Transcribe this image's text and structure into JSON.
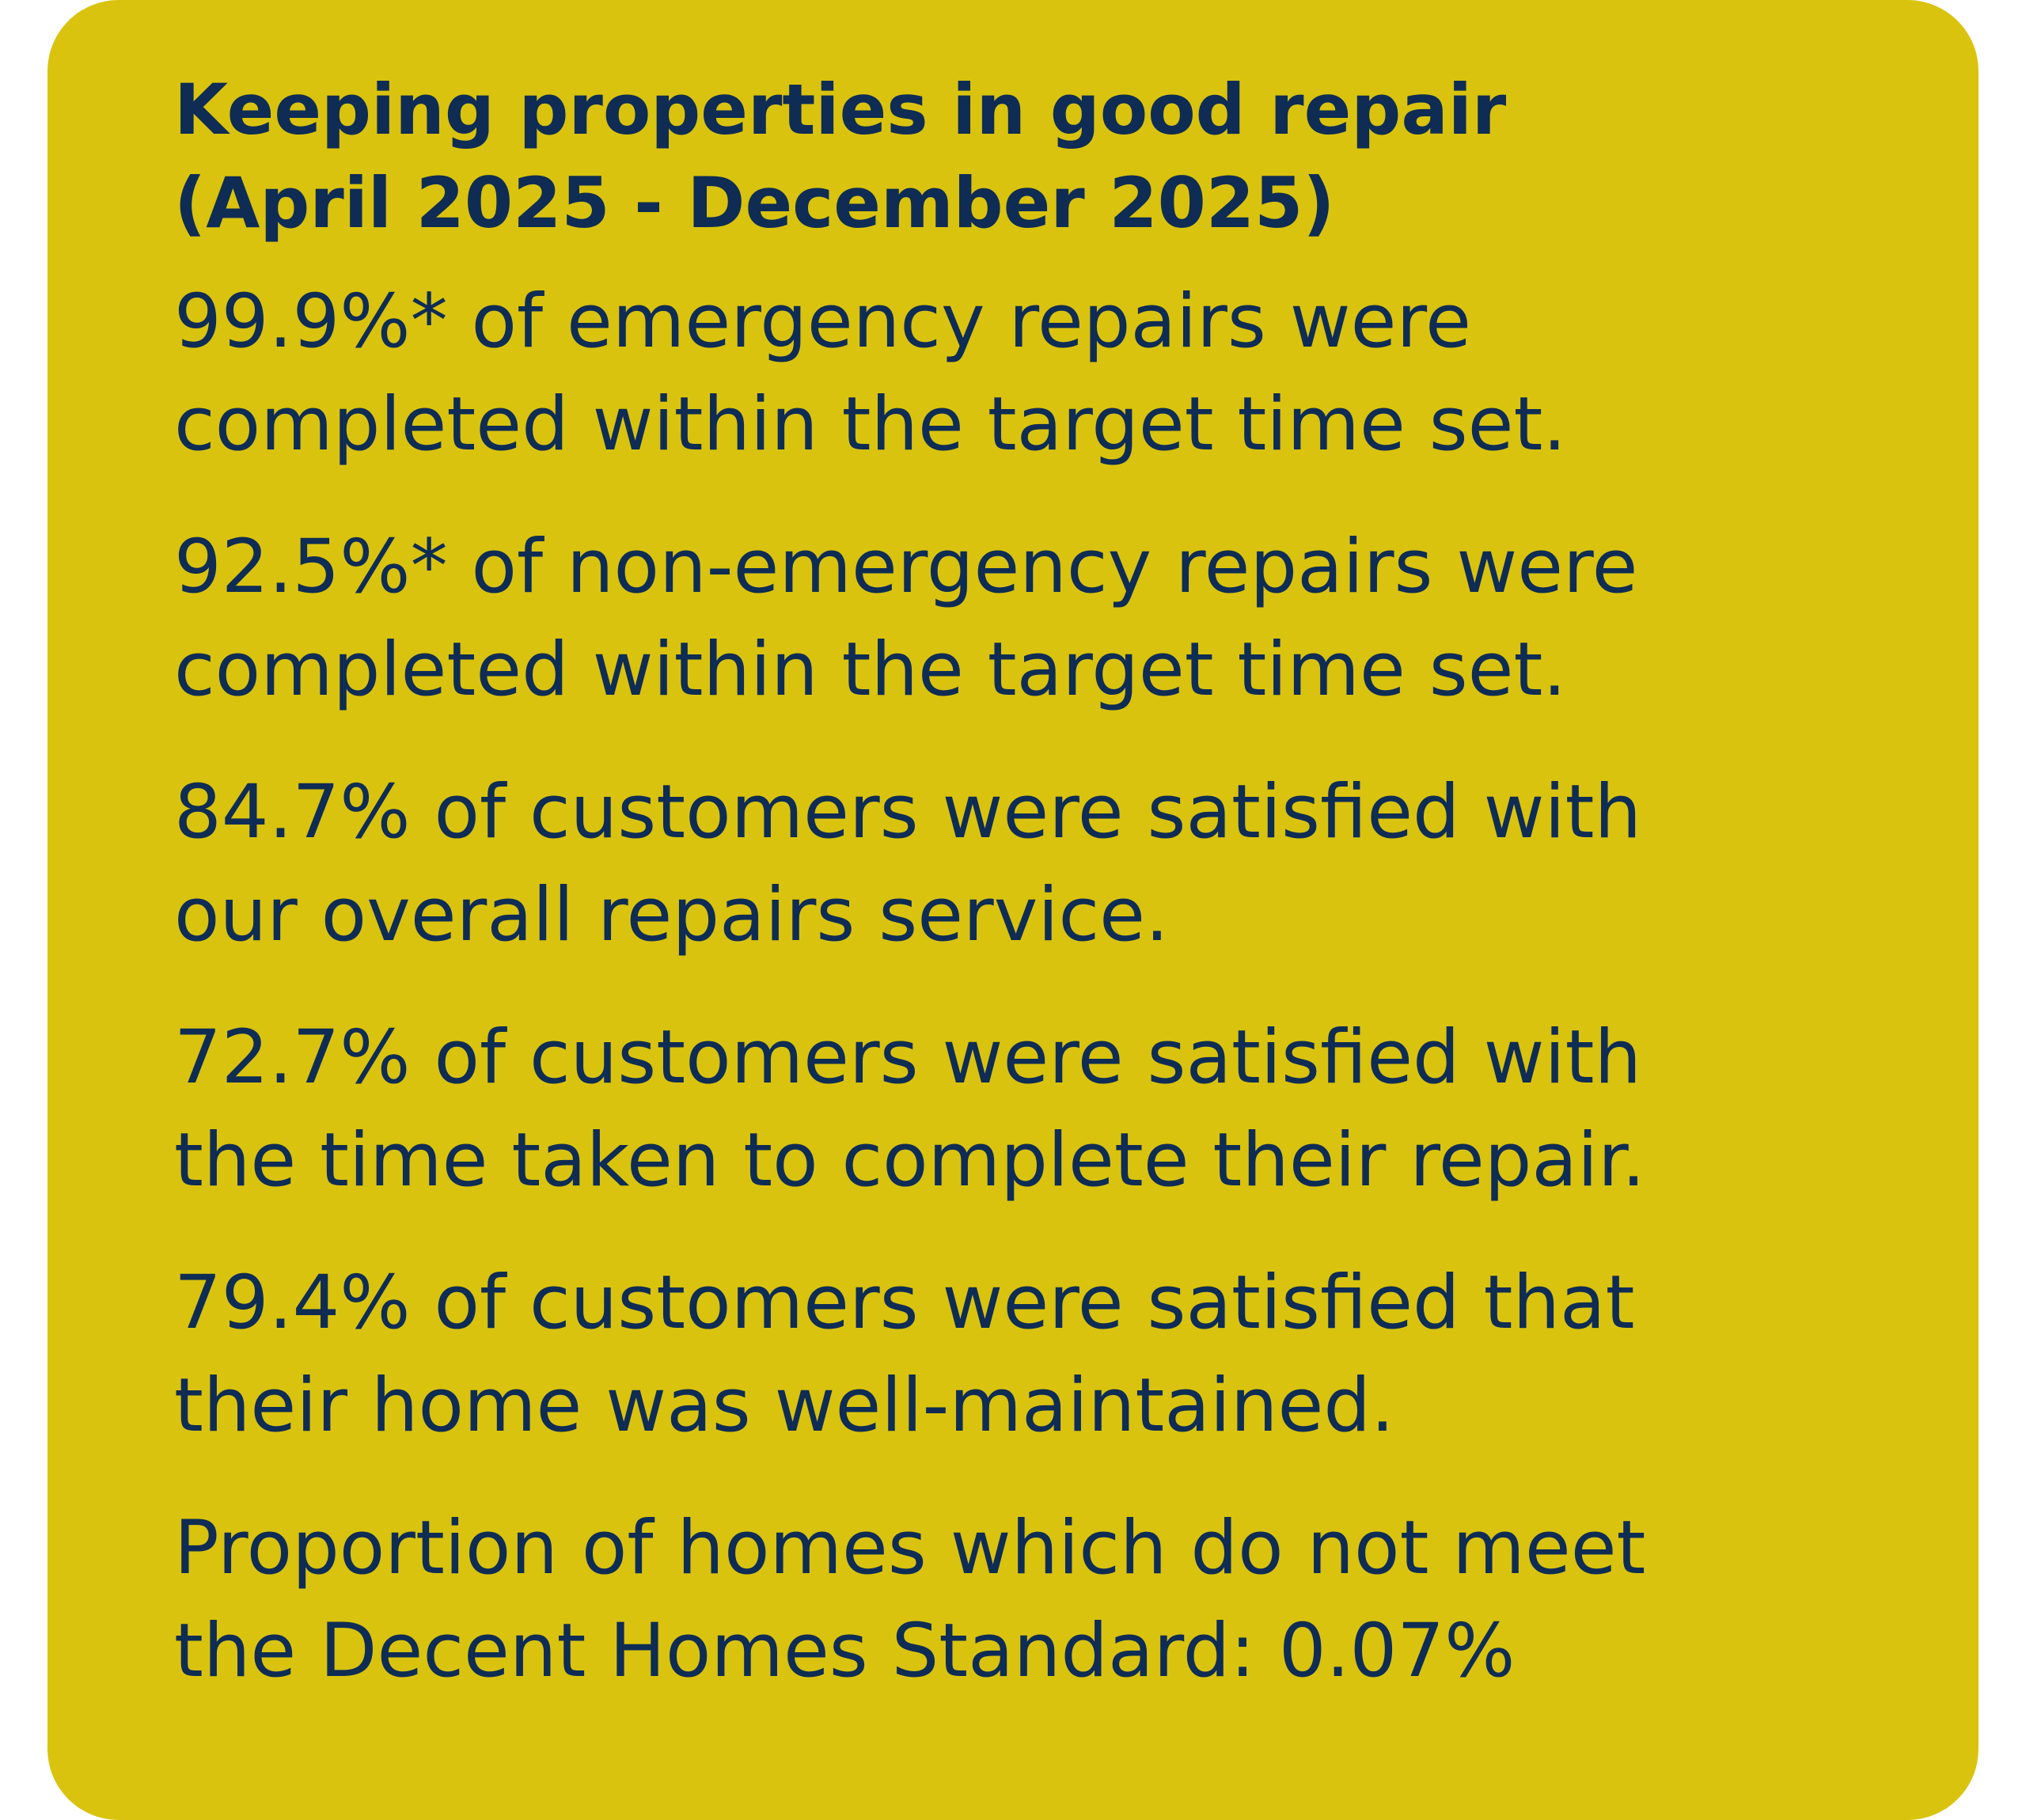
{
  "card": {
    "title_line1": "Keeping properties in good repair",
    "title_line2": "(April 2025 - December 2025)",
    "stats": [
      {
        "line1": "99.9%* of emergency repairs were",
        "line2": "completed within the target time set."
      },
      {
        "line1": "92.5%* of non-emergency repairs were",
        "line2": "completed within the target time set."
      },
      {
        "line1": "84.7% of customers were satisfied with",
        "line2": "our overall repairs service."
      },
      {
        "line1": "72.7% of customers were satisfied with",
        "line2": "the time taken to complete their repair."
      },
      {
        "line1": "79.4% of customers were satisfied that",
        "line2": "their home was well-maintained."
      },
      {
        "line1": "Proportion of homes which do not meet",
        "line2": "the Decent Homes Standard: 0.07%"
      }
    ]
  },
  "colors": {
    "background": "#d9c30e",
    "text": "#0e2c54"
  }
}
